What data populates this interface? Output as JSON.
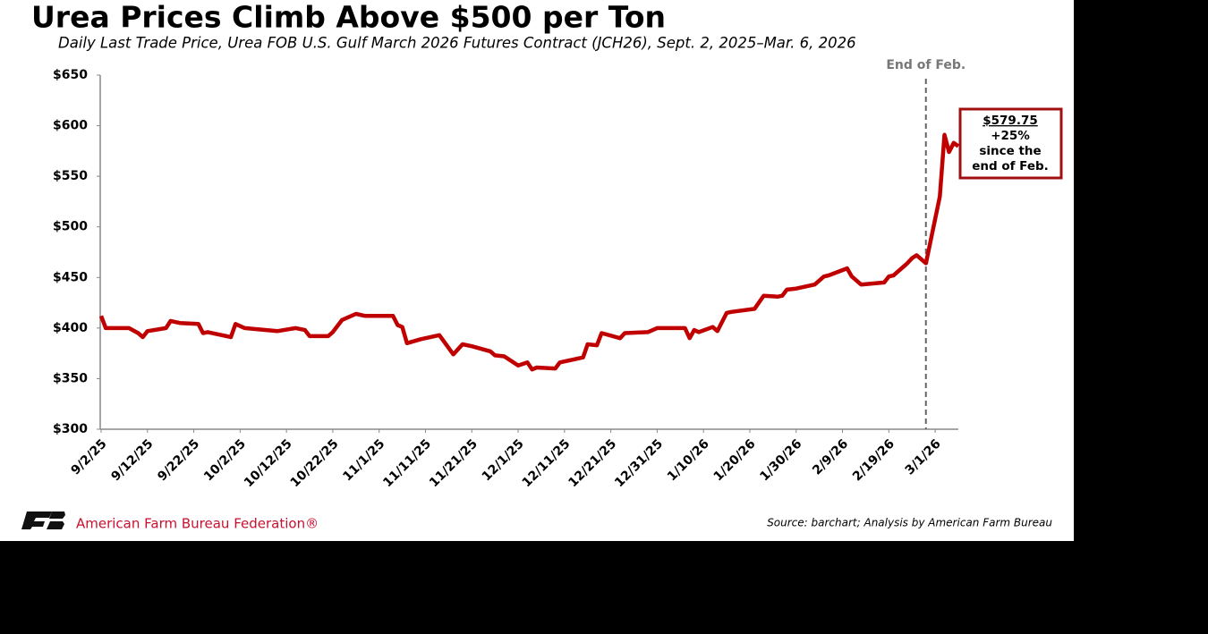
{
  "chart_data": {
    "type": "line",
    "title": "Urea Prices Climb Above $500 per Ton",
    "subtitle": "Daily Last Trade Price, Urea FOB U.S. Gulf March 2026 Futures Contract (JCH26), Sept. 2, 2025–Mar. 6, 2026",
    "color": "#c00000",
    "x": [
      "2025-09-02",
      "2025-09-03",
      "2025-09-08",
      "2025-09-10",
      "2025-09-11",
      "2025-09-12",
      "2025-09-16",
      "2025-09-17",
      "2025-09-19",
      "2025-09-23",
      "2025-09-24",
      "2025-09-25",
      "2025-09-30",
      "2025-10-01",
      "2025-10-03",
      "2025-10-10",
      "2025-10-14",
      "2025-10-16",
      "2025-10-17",
      "2025-10-21",
      "2025-10-22",
      "2025-10-24",
      "2025-10-27",
      "2025-10-29",
      "2025-11-04",
      "2025-11-05",
      "2025-11-06",
      "2025-11-07",
      "2025-11-10",
      "2025-11-11",
      "2025-11-14",
      "2025-11-17",
      "2025-11-19",
      "2025-11-21",
      "2025-11-25",
      "2025-11-26",
      "2025-11-28",
      "2025-12-01",
      "2025-12-03",
      "2025-12-04",
      "2025-12-05",
      "2025-12-09",
      "2025-12-10",
      "2025-12-15",
      "2025-12-16",
      "2025-12-18",
      "2025-12-19",
      "2025-12-23",
      "2025-12-24",
      "2025-12-29",
      "2025-12-31",
      "2026-01-06",
      "2026-01-07",
      "2026-01-08",
      "2026-01-09",
      "2026-01-12",
      "2026-01-13",
      "2026-01-15",
      "2026-01-16",
      "2026-01-21",
      "2026-01-23",
      "2026-01-26",
      "2026-01-27",
      "2026-01-28",
      "2026-01-30",
      "2026-02-03",
      "2026-02-05",
      "2026-02-06",
      "2026-02-10",
      "2026-02-11",
      "2026-02-13",
      "2026-02-18",
      "2026-02-19",
      "2026-02-20",
      "2026-02-23",
      "2026-02-24",
      "2026-02-25",
      "2026-02-26",
      "2026-02-27",
      "2026-03-02",
      "2026-03-03",
      "2026-03-04",
      "2026-03-05",
      "2026-03-06"
    ],
    "values": [
      412,
      400,
      400,
      395,
      391,
      397,
      400,
      407,
      405,
      404,
      395,
      396,
      391,
      404,
      400,
      397,
      400,
      398,
      392,
      392,
      396,
      408,
      414,
      412,
      412,
      403,
      401,
      385,
      389,
      390,
      393,
      374,
      384,
      382,
      377,
      373,
      372,
      363,
      366,
      359,
      361,
      360,
      366,
      371,
      384,
      383,
      395,
      390,
      395,
      396,
      400,
      400,
      390,
      398,
      396,
      401,
      397,
      415,
      416,
      419,
      432,
      431,
      432,
      438,
      439,
      443,
      451,
      452,
      459,
      451,
      443,
      445,
      451,
      452,
      464,
      469,
      472,
      468,
      464,
      530,
      591,
      574,
      583,
      579.75
    ],
    "xlim": [
      "2025-09-02",
      "2026-03-06"
    ],
    "xticks": [
      {
        "value": "2025-09-02",
        "label": "9/2/25"
      },
      {
        "value": "2025-09-12",
        "label": "9/12/25"
      },
      {
        "value": "2025-09-22",
        "label": "9/22/25"
      },
      {
        "value": "2025-10-02",
        "label": "10/2/25"
      },
      {
        "value": "2025-10-12",
        "label": "10/12/25"
      },
      {
        "value": "2025-10-22",
        "label": "10/22/25"
      },
      {
        "value": "2025-11-01",
        "label": "11/1/25"
      },
      {
        "value": "2025-11-11",
        "label": "11/11/25"
      },
      {
        "value": "2025-11-21",
        "label": "11/21/25"
      },
      {
        "value": "2025-12-01",
        "label": "12/1/25"
      },
      {
        "value": "2025-12-11",
        "label": "12/11/25"
      },
      {
        "value": "2025-12-21",
        "label": "12/21/25"
      },
      {
        "value": "2025-12-31",
        "label": "12/31/25"
      },
      {
        "value": "2026-01-10",
        "label": "1/10/26"
      },
      {
        "value": "2026-01-20",
        "label": "1/20/26"
      },
      {
        "value": "2026-01-30",
        "label": "1/30/26"
      },
      {
        "value": "2026-02-09",
        "label": "2/9/26"
      },
      {
        "value": "2026-02-19",
        "label": "2/19/26"
      },
      {
        "value": "2026-03-01",
        "label": "3/1/26"
      }
    ],
    "ylim": [
      300,
      650
    ],
    "yticks": [
      {
        "value": 300,
        "label": "$300"
      },
      {
        "value": 350,
        "label": "$350"
      },
      {
        "value": 400,
        "label": "$400"
      },
      {
        "value": 450,
        "label": "$450"
      },
      {
        "value": 500,
        "label": "$500"
      },
      {
        "value": 550,
        "label": "$550"
      },
      {
        "value": 600,
        "label": "$600"
      },
      {
        "value": 650,
        "label": "$650"
      }
    ],
    "grid": false,
    "vline": {
      "x": "2026-02-27",
      "label": "End of Feb."
    },
    "annotation": [
      "$579.75",
      "+25%",
      "since the",
      "end of Feb."
    ],
    "source": "Source: barchart; Analysis by American Farm Bureau",
    "organization": "American Farm Bureau Federation®"
  }
}
